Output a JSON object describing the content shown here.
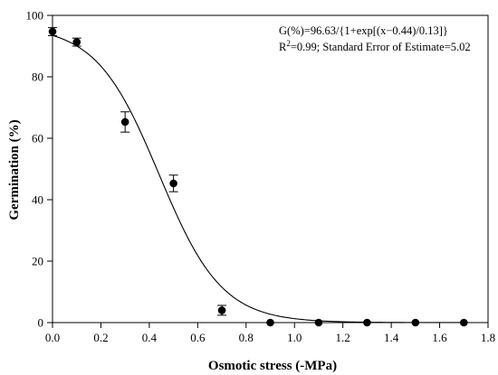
{
  "chart_data": {
    "type": "scatter",
    "title": "",
    "xlabel": "Osmotic stress (-MPa)",
    "ylabel": "Germination (%)",
    "xlim": [
      0.0,
      1.8
    ],
    "ylim": [
      0,
      100
    ],
    "x_ticks": [
      "0.0",
      "0.2",
      "0.4",
      "0.6",
      "0.8",
      "1.0",
      "1.2",
      "1.4",
      "1.6",
      "1.8"
    ],
    "y_ticks": [
      "0",
      "20",
      "40",
      "60",
      "80",
      "100"
    ],
    "grid": false,
    "legend": "none",
    "series": [
      {
        "type": "scatter",
        "x": [
          0.0,
          0.1,
          0.3,
          0.5,
          0.7,
          0.9,
          1.1,
          1.3,
          1.5,
          1.7
        ],
        "y": [
          94.7,
          91.3,
          65.3,
          45.3,
          4.0,
          0.0,
          0.0,
          0.0,
          0.0,
          0.0
        ],
        "error": [
          1.3,
          1.3,
          3.3,
          2.7,
          1.6,
          0,
          0,
          0,
          0,
          0
        ],
        "color": "#000000"
      },
      {
        "type": "line",
        "model": "sigmoid",
        "params": {
          "a": 96.63,
          "x0": 0.44,
          "b": 0.13
        },
        "color": "#000000"
      }
    ],
    "annotations": [
      {
        "text": "G(%)=96.63/{1+exp[(x−0.44)/0.13]}"
      },
      {
        "text_base": "R",
        "text_sup": "2",
        "text_rest": "=0.99; Standard Error of Estimate=5.02"
      }
    ]
  }
}
